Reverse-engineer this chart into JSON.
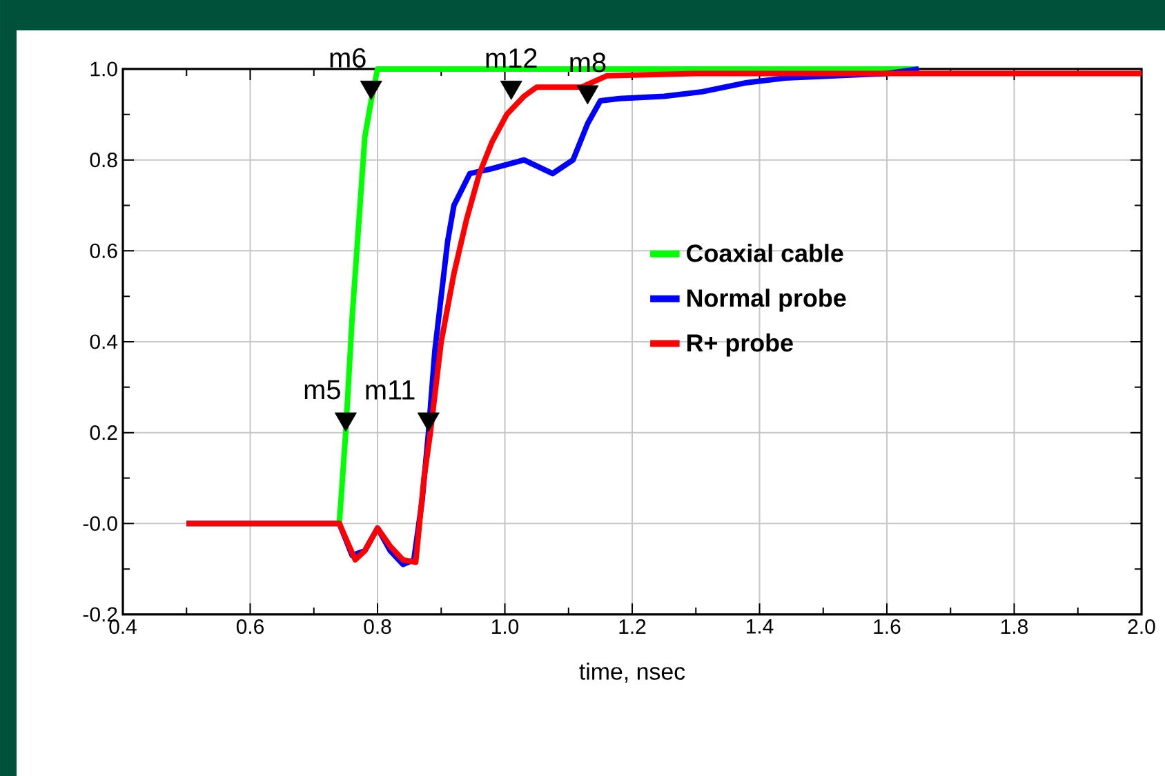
{
  "chart_data": {
    "type": "line",
    "xlabel": "time, nsec",
    "xlim": [
      0.4,
      2.0
    ],
    "ylim": [
      -0.2,
      1.0
    ],
    "xticks": [
      {
        "value": 0.4,
        "label": "0.4"
      },
      {
        "value": 0.6,
        "label": "0.6"
      },
      {
        "value": 0.8,
        "label": "0.8"
      },
      {
        "value": 1.0,
        "label": "1.0"
      },
      {
        "value": 1.2,
        "label": "1.2"
      },
      {
        "value": 1.4,
        "label": "1.4"
      },
      {
        "value": 1.6,
        "label": "1.6"
      },
      {
        "value": 1.8,
        "label": "1.8"
      },
      {
        "value": 2.0,
        "label": "2.0"
      }
    ],
    "yticks": [
      {
        "value": -0.2,
        "label": "-0.2"
      },
      {
        "value": 0,
        "label": "-0.0"
      },
      {
        "value": 0.2,
        "label": "0.2"
      },
      {
        "value": 0.4,
        "label": "0.4"
      },
      {
        "value": 0.6,
        "label": "0.6"
      },
      {
        "value": 0.8,
        "label": "0.8"
      },
      {
        "value": 1.0,
        "label": "1.0"
      }
    ],
    "grid": true,
    "legend": "center",
    "marker": "none",
    "line_style": "solid",
    "series": [
      {
        "name": "Coaxial cable",
        "color": "#00ff00",
        "x": [
          0.5,
          0.74,
          0.75,
          0.76,
          0.77,
          0.78,
          0.79,
          0.8,
          0.81,
          1.65
        ],
        "values": [
          0,
          0,
          0.2,
          0.45,
          0.65,
          0.85,
          0.93,
          1.0,
          1.0,
          1.0
        ]
      },
      {
        "name": "Normal probe",
        "color": "#0000ff",
        "x": [
          0.5,
          0.74,
          0.76,
          0.78,
          0.8,
          0.82,
          0.84,
          0.857,
          0.87,
          0.88,
          0.89,
          0.9,
          0.91,
          0.92,
          0.945,
          0.977,
          1.03,
          1.075,
          1.107,
          1.13,
          1.15,
          1.18,
          1.25,
          1.31,
          1.38,
          1.44,
          1.6,
          1.65
        ],
        "values": [
          0,
          0,
          -0.07,
          -0.06,
          -0.01,
          -0.06,
          -0.09,
          -0.08,
          0.05,
          0.2,
          0.38,
          0.5,
          0.62,
          0.7,
          0.77,
          0.78,
          0.8,
          0.77,
          0.8,
          0.88,
          0.93,
          0.935,
          0.94,
          0.95,
          0.97,
          0.98,
          0.99,
          1.0
        ]
      },
      {
        "name": "R+ probe",
        "color": "#ff0000",
        "x": [
          0.5,
          0.74,
          0.765,
          0.78,
          0.8,
          0.82,
          0.84,
          0.86,
          0.873,
          0.883,
          0.9,
          0.92,
          0.94,
          0.96,
          0.98,
          1.003,
          1.03,
          1.05,
          1.12,
          1.16,
          1.3,
          2.0
        ],
        "values": [
          0,
          0,
          -0.08,
          -0.06,
          -0.01,
          -0.05,
          -0.08,
          -0.085,
          0.1,
          0.2,
          0.4,
          0.55,
          0.67,
          0.77,
          0.84,
          0.9,
          0.94,
          0.96,
          0.96,
          0.985,
          0.99,
          0.99
        ]
      },
      {
        "type": "scatter",
        "marker": "triangle",
        "color": "#000000",
        "x": [
          0.75,
          0.79,
          0.88,
          1.01,
          1.13
        ],
        "values": [
          0.23,
          0.96,
          0.23,
          0.96,
          0.95
        ]
      }
    ],
    "annotations": [
      {
        "text": "m5",
        "x": 0.75,
        "y": 0.23
      },
      {
        "text": "m6",
        "x": 0.79,
        "y": 0.96
      },
      {
        "text": "m11",
        "x": 0.88,
        "y": 0.23
      },
      {
        "text": "m12",
        "x": 1.01,
        "y": 0.96
      },
      {
        "text": "m8",
        "x": 1.13,
        "y": 0.95
      }
    ]
  }
}
